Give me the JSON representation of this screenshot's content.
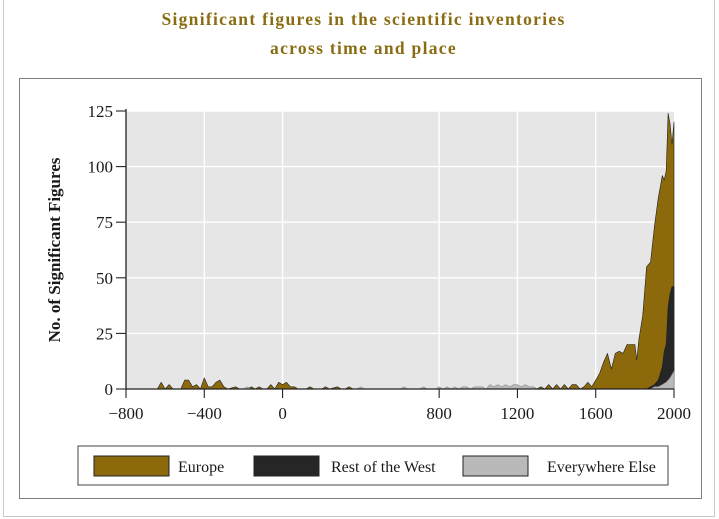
{
  "title_lines": [
    "Significant figures in the scientific inventories",
    "across time and place"
  ],
  "colors": {
    "title": "#8a6d12",
    "plot_bg": "#e6e6e6",
    "grid": "#ffffff",
    "Europe": "#8c6a0c",
    "Rest of the West": "#262626",
    "Everywhere Else": "#b9b9b9"
  },
  "chart_data": {
    "type": "area",
    "title": "Significant figures in the scientific inventories across time and place",
    "xlabel": "",
    "ylabel": "No. of Significant Figures",
    "xlim": [
      -800,
      2000
    ],
    "ylim": [
      0,
      125
    ],
    "x_ticks": [
      -800,
      -400,
      0,
      800,
      1200,
      1600,
      2000
    ],
    "x_tick_labels": [
      "−800",
      "−400",
      "0",
      "800",
      "1200",
      "1600",
      "2000"
    ],
    "y_ticks": [
      0,
      25,
      50,
      75,
      100,
      125
    ],
    "grid": true,
    "stacked": true,
    "legend_position": "bottom",
    "series": [
      {
        "name": "Europe",
        "points": [
          [
            -800,
            0
          ],
          [
            -640,
            0
          ],
          [
            -620,
            3
          ],
          [
            -600,
            0
          ],
          [
            -580,
            2
          ],
          [
            -560,
            0
          ],
          [
            -520,
            0
          ],
          [
            -500,
            4
          ],
          [
            -480,
            4
          ],
          [
            -460,
            1
          ],
          [
            -440,
            2
          ],
          [
            -420,
            0
          ],
          [
            -400,
            5
          ],
          [
            -380,
            1
          ],
          [
            -360,
            1
          ],
          [
            -340,
            3
          ],
          [
            -320,
            4
          ],
          [
            -300,
            1
          ],
          [
            -280,
            0
          ],
          [
            -240,
            1
          ],
          [
            -220,
            0
          ],
          [
            -180,
            0
          ],
          [
            -160,
            1
          ],
          [
            -140,
            0
          ],
          [
            -120,
            1
          ],
          [
            -100,
            0
          ],
          [
            -80,
            0
          ],
          [
            -60,
            2
          ],
          [
            -40,
            0
          ],
          [
            -20,
            3
          ],
          [
            0,
            2
          ],
          [
            20,
            3
          ],
          [
            40,
            1
          ],
          [
            60,
            1
          ],
          [
            80,
            0
          ],
          [
            120,
            0
          ],
          [
            140,
            1
          ],
          [
            160,
            0
          ],
          [
            200,
            0
          ],
          [
            220,
            1
          ],
          [
            240,
            0
          ],
          [
            280,
            1
          ],
          [
            300,
            0
          ],
          [
            320,
            0
          ],
          [
            340,
            1
          ],
          [
            360,
            0
          ],
          [
            400,
            0
          ],
          [
            440,
            0
          ],
          [
            1000,
            0
          ],
          [
            1200,
            0
          ],
          [
            1240,
            1
          ],
          [
            1260,
            0
          ],
          [
            1280,
            1
          ],
          [
            1300,
            0
          ],
          [
            1320,
            1
          ],
          [
            1340,
            0
          ],
          [
            1360,
            2
          ],
          [
            1380,
            0
          ],
          [
            1400,
            2
          ],
          [
            1420,
            0
          ],
          [
            1440,
            2
          ],
          [
            1460,
            0
          ],
          [
            1480,
            2
          ],
          [
            1500,
            2
          ],
          [
            1520,
            0
          ],
          [
            1540,
            1
          ],
          [
            1560,
            3
          ],
          [
            1580,
            1
          ],
          [
            1600,
            4
          ],
          [
            1620,
            7
          ],
          [
            1640,
            12
          ],
          [
            1660,
            16
          ],
          [
            1680,
            9
          ],
          [
            1700,
            16
          ],
          [
            1720,
            17
          ],
          [
            1740,
            16
          ],
          [
            1760,
            20
          ],
          [
            1780,
            20
          ],
          [
            1800,
            20
          ],
          [
            1810,
            13
          ],
          [
            1820,
            22
          ],
          [
            1840,
            33
          ],
          [
            1860,
            55
          ],
          [
            1880,
            57
          ],
          [
            1900,
            73
          ],
          [
            1920,
            86
          ],
          [
            1940,
            96
          ],
          [
            1950,
            94
          ],
          [
            1960,
            98
          ],
          [
            1970,
            124
          ],
          [
            1980,
            119
          ],
          [
            1990,
            110
          ],
          [
            2000,
            120
          ]
        ]
      },
      {
        "name": "Rest of the West",
        "points": [
          [
            -800,
            0
          ],
          [
            1800,
            0
          ],
          [
            1820,
            0
          ],
          [
            1840,
            0
          ],
          [
            1860,
            0
          ],
          [
            1880,
            1
          ],
          [
            1900,
            2
          ],
          [
            1920,
            4
          ],
          [
            1940,
            10
          ],
          [
            1950,
            17
          ],
          [
            1960,
            20
          ],
          [
            1970,
            37
          ],
          [
            1980,
            43
          ],
          [
            1990,
            46
          ],
          [
            2000,
            46
          ]
        ]
      },
      {
        "name": "Everywhere Else",
        "points": [
          [
            -800,
            0
          ],
          [
            -200,
            0
          ],
          [
            -180,
            1
          ],
          [
            -160,
            0
          ],
          [
            380,
            0
          ],
          [
            400,
            1
          ],
          [
            420,
            0
          ],
          [
            600,
            0
          ],
          [
            620,
            1
          ],
          [
            640,
            0
          ],
          [
            700,
            0
          ],
          [
            720,
            1
          ],
          [
            740,
            0
          ],
          [
            780,
            0
          ],
          [
            800,
            1
          ],
          [
            820,
            0
          ],
          [
            840,
            1
          ],
          [
            860,
            0
          ],
          [
            880,
            1
          ],
          [
            900,
            0
          ],
          [
            920,
            1
          ],
          [
            940,
            1
          ],
          [
            960,
            0
          ],
          [
            980,
            1
          ],
          [
            1000,
            1
          ],
          [
            1020,
            1
          ],
          [
            1040,
            0
          ],
          [
            1060,
            2
          ],
          [
            1080,
            1
          ],
          [
            1100,
            2
          ],
          [
            1120,
            1
          ],
          [
            1140,
            2
          ],
          [
            1160,
            1
          ],
          [
            1180,
            2
          ],
          [
            1200,
            2
          ],
          [
            1220,
            1
          ],
          [
            1240,
            2
          ],
          [
            1260,
            1
          ],
          [
            1280,
            1
          ],
          [
            1300,
            0
          ],
          [
            1800,
            0
          ],
          [
            1880,
            0
          ],
          [
            1900,
            1
          ],
          [
            1920,
            1
          ],
          [
            1940,
            2
          ],
          [
            1960,
            3
          ],
          [
            1980,
            5
          ],
          [
            2000,
            8
          ]
        ]
      }
    ]
  }
}
